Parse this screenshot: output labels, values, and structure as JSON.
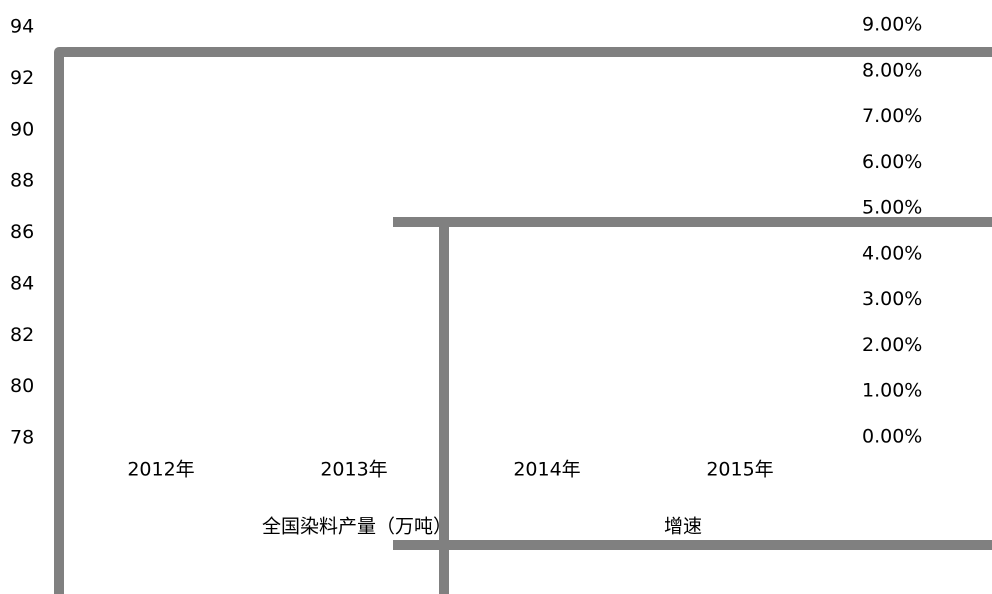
{
  "chart_data": {
    "type": "bar",
    "categories": [
      "2012年",
      "2013年",
      "2014年",
      "2015年"
    ],
    "series": [
      {
        "name": "全国染料产量（万吨）",
        "color": "#808080",
        "values": [
          null,
          null,
          null,
          null
        ]
      },
      {
        "name": "增速",
        "color": "#808080",
        "axis": "y2",
        "values": [
          null,
          null,
          null,
          null
        ]
      }
    ],
    "ylim": [
      78,
      94
    ],
    "yticks": [
      78,
      80,
      82,
      84,
      86,
      88,
      90,
      92,
      94
    ],
    "y2lim": [
      0,
      9
    ],
    "y2ticks": [
      {
        "value": 0,
        "label": "0.00%"
      },
      {
        "value": 1,
        "label": "1.00%"
      },
      {
        "value": 2,
        "label": "2.00%"
      },
      {
        "value": 3,
        "label": "3.00%"
      },
      {
        "value": 4,
        "label": "4.00%"
      },
      {
        "value": 5,
        "label": "5.00%"
      },
      {
        "value": 6,
        "label": "6.00%"
      },
      {
        "value": 7,
        "label": "7.00%"
      },
      {
        "value": 8,
        "label": "8.00%"
      },
      {
        "value": 9,
        "label": "9.00%"
      }
    ]
  }
}
